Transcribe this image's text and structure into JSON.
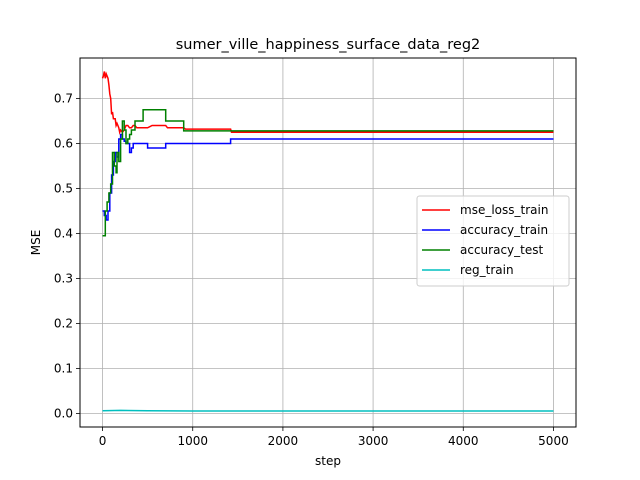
{
  "chart_data": {
    "type": "line",
    "title": "sumer_ville_happiness_surface_data_reg2",
    "xlabel": "step",
    "ylabel": "MSE",
    "xlim": [
      -250,
      5250
    ],
    "ylim": [
      -0.03,
      0.79
    ],
    "xticks": [
      0,
      1000,
      2000,
      3000,
      4000,
      5000
    ],
    "xtick_labels": [
      "0",
      "1000",
      "2000",
      "3000",
      "4000",
      "5000"
    ],
    "yticks": [
      0.0,
      0.1,
      0.2,
      0.3,
      0.4,
      0.5,
      0.6,
      0.7
    ],
    "ytick_labels": [
      "0.0",
      "0.1",
      "0.2",
      "0.3",
      "0.4",
      "0.5",
      "0.6",
      "0.7"
    ],
    "grid": true,
    "legend_position": "center-right",
    "series": [
      {
        "name": "mse_loss_train",
        "color": "#ff0000",
        "step": false,
        "points": [
          [
            0,
            0.745
          ],
          [
            10,
            0.75
          ],
          [
            20,
            0.76
          ],
          [
            30,
            0.745
          ],
          [
            40,
            0.755
          ],
          [
            50,
            0.75
          ],
          [
            60,
            0.745
          ],
          [
            70,
            0.73
          ],
          [
            80,
            0.71
          ],
          [
            90,
            0.7
          ],
          [
            100,
            0.665
          ],
          [
            110,
            0.67
          ],
          [
            120,
            0.655
          ],
          [
            140,
            0.655
          ],
          [
            150,
            0.64
          ],
          [
            160,
            0.645
          ],
          [
            170,
            0.64
          ],
          [
            180,
            0.635
          ],
          [
            190,
            0.625
          ],
          [
            200,
            0.63
          ],
          [
            220,
            0.625
          ],
          [
            240,
            0.63
          ],
          [
            260,
            0.64
          ],
          [
            280,
            0.64
          ],
          [
            300,
            0.635
          ],
          [
            320,
            0.635
          ],
          [
            340,
            0.64
          ],
          [
            360,
            0.64
          ],
          [
            380,
            0.635
          ],
          [
            400,
            0.635
          ],
          [
            500,
            0.635
          ],
          [
            550,
            0.64
          ],
          [
            700,
            0.64
          ],
          [
            720,
            0.635
          ],
          [
            900,
            0.635
          ],
          [
            920,
            0.632
          ],
          [
            1420,
            0.632
          ],
          [
            1430,
            0.625
          ],
          [
            5000,
            0.625
          ]
        ]
      },
      {
        "name": "accuracy_train",
        "color": "#0000ff",
        "step": true,
        "points": [
          [
            0,
            0.45
          ],
          [
            20,
            0.44
          ],
          [
            40,
            0.43
          ],
          [
            60,
            0.45
          ],
          [
            80,
            0.49
          ],
          [
            100,
            0.53
          ],
          [
            120,
            0.56
          ],
          [
            140,
            0.58
          ],
          [
            160,
            0.57
          ],
          [
            180,
            0.61
          ],
          [
            200,
            0.62
          ],
          [
            220,
            0.61
          ],
          [
            240,
            0.605
          ],
          [
            260,
            0.6
          ],
          [
            280,
            0.6
          ],
          [
            300,
            0.58
          ],
          [
            320,
            0.59
          ],
          [
            340,
            0.6
          ],
          [
            500,
            0.59
          ],
          [
            700,
            0.6
          ],
          [
            1420,
            0.61
          ],
          [
            5000,
            0.61
          ]
        ]
      },
      {
        "name": "accuracy_test",
        "color": "#008000",
        "step": true,
        "points": [
          [
            0,
            0.395
          ],
          [
            30,
            0.45
          ],
          [
            50,
            0.47
          ],
          [
            70,
            0.49
          ],
          [
            90,
            0.51
          ],
          [
            110,
            0.58
          ],
          [
            130,
            0.55
          ],
          [
            150,
            0.535
          ],
          [
            160,
            0.58
          ],
          [
            180,
            0.56
          ],
          [
            200,
            0.61
          ],
          [
            220,
            0.65
          ],
          [
            240,
            0.63
          ],
          [
            260,
            0.6
          ],
          [
            280,
            0.61
          ],
          [
            300,
            0.62
          ],
          [
            320,
            0.63
          ],
          [
            340,
            0.63
          ],
          [
            360,
            0.65
          ],
          [
            450,
            0.675
          ],
          [
            700,
            0.65
          ],
          [
            900,
            0.628
          ],
          [
            5000,
            0.628
          ]
        ]
      },
      {
        "name": "reg_train",
        "color": "#00bfbf",
        "step": false,
        "points": [
          [
            0,
            0.006
          ],
          [
            200,
            0.007
          ],
          [
            500,
            0.006
          ],
          [
            1000,
            0.0055
          ],
          [
            5000,
            0.0055
          ]
        ]
      }
    ]
  }
}
